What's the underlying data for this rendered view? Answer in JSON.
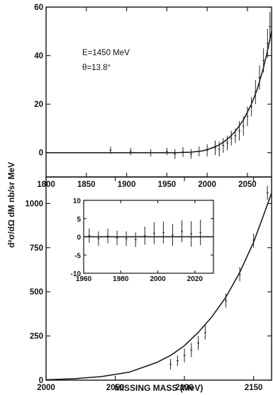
{
  "chart_data": [
    {
      "type": "scatter",
      "panel": "top",
      "annotations": [
        "E=1450 MeV",
        "θ=13.8°"
      ],
      "xlabel": "",
      "ylabel": "d²σ/dΩ dM  nb/sr MeV",
      "xlim": [
        1800,
        2080
      ],
      "ylim": [
        -10,
        60
      ],
      "x_ticks": [
        1800,
        1850,
        1900,
        1950,
        2000,
        2050
      ],
      "y_ticks": [
        0,
        20,
        40,
        60
      ],
      "grid": false,
      "series": [
        {
          "kind": "data_points_with_error_bars",
          "points": [
            {
              "x": 1880,
              "y": 1,
              "err": 1.5
            },
            {
              "x": 1905,
              "y": 0.5,
              "err": 1.5
            },
            {
              "x": 1930,
              "y": 0,
              "err": 1.5
            },
            {
              "x": 1950,
              "y": 0.5,
              "err": 1.5
            },
            {
              "x": 1960,
              "y": -0.5,
              "err": 2
            },
            {
              "x": 1970,
              "y": 0.3,
              "err": 2
            },
            {
              "x": 1980,
              "y": -0.5,
              "err": 2
            },
            {
              "x": 1990,
              "y": 0.5,
              "err": 2
            },
            {
              "x": 2000,
              "y": 1,
              "err": 2.5
            },
            {
              "x": 2010,
              "y": 2,
              "err": 3
            },
            {
              "x": 2015,
              "y": 1.5,
              "err": 3
            },
            {
              "x": 2020,
              "y": 3,
              "err": 3
            },
            {
              "x": 2025,
              "y": 4,
              "err": 3
            },
            {
              "x": 2030,
              "y": 6,
              "err": 3
            },
            {
              "x": 2035,
              "y": 7,
              "err": 3
            },
            {
              "x": 2040,
              "y": 9,
              "err": 4
            },
            {
              "x": 2045,
              "y": 11,
              "err": 4
            },
            {
              "x": 2050,
              "y": 15,
              "err": 4
            },
            {
              "x": 2055,
              "y": 19,
              "err": 4
            },
            {
              "x": 2060,
              "y": 25,
              "err": 5
            },
            {
              "x": 2065,
              "y": 31,
              "err": 5
            },
            {
              "x": 2070,
              "y": 38,
              "err": 5
            },
            {
              "x": 2075,
              "y": 45,
              "err": 6
            },
            {
              "x": 2078,
              "y": 52,
              "err": 6
            }
          ]
        },
        {
          "kind": "fit_curve",
          "points": [
            {
              "x": 1800,
              "y": 0
            },
            {
              "x": 1960,
              "y": 0
            },
            {
              "x": 1980,
              "y": 0.2
            },
            {
              "x": 1995,
              "y": 0.8
            },
            {
              "x": 2005,
              "y": 1.8
            },
            {
              "x": 2015,
              "y": 3.2
            },
            {
              "x": 2025,
              "y": 5.5
            },
            {
              "x": 2035,
              "y": 8.8
            },
            {
              "x": 2045,
              "y": 13.5
            },
            {
              "x": 2055,
              "y": 20
            },
            {
              "x": 2062,
              "y": 26
            },
            {
              "x": 2070,
              "y": 35
            },
            {
              "x": 2075,
              "y": 42
            },
            {
              "x": 2080,
              "y": 50
            }
          ]
        }
      ]
    },
    {
      "type": "scatter",
      "panel": "bottom",
      "xlabel": "MISSING MASS (MeV)",
      "ylabel": "",
      "xlim": [
        2000,
        2163
      ],
      "ylim": [
        0,
        1150
      ],
      "x_ticks": [
        2000,
        2050,
        2100,
        2150
      ],
      "y_ticks": [
        0,
        250,
        500,
        750,
        1000
      ],
      "grid": false,
      "series": [
        {
          "kind": "data_points_with_error_bars",
          "points": [
            {
              "x": 2090,
              "y": 90,
              "err": 30
            },
            {
              "x": 2095,
              "y": 110,
              "err": 30
            },
            {
              "x": 2100,
              "y": 140,
              "err": 40
            },
            {
              "x": 2105,
              "y": 170,
              "err": 40
            },
            {
              "x": 2110,
              "y": 210,
              "err": 40
            },
            {
              "x": 2115,
              "y": 270,
              "err": 40
            },
            {
              "x": 2130,
              "y": 450,
              "err": 40
            },
            {
              "x": 2140,
              "y": 600,
              "err": 40
            },
            {
              "x": 2150,
              "y": 790,
              "err": 40
            },
            {
              "x": 2160,
              "y": 1060,
              "err": 40
            }
          ]
        },
        {
          "kind": "fit_curve",
          "points": [
            {
              "x": 2000,
              "y": 2
            },
            {
              "x": 2020,
              "y": 8
            },
            {
              "x": 2040,
              "y": 20
            },
            {
              "x": 2060,
              "y": 45
            },
            {
              "x": 2080,
              "y": 100
            },
            {
              "x": 2090,
              "y": 140
            },
            {
              "x": 2100,
              "y": 195
            },
            {
              "x": 2110,
              "y": 270
            },
            {
              "x": 2120,
              "y": 360
            },
            {
              "x": 2130,
              "y": 470
            },
            {
              "x": 2140,
              "y": 610
            },
            {
              "x": 2150,
              "y": 780
            },
            {
              "x": 2158,
              "y": 950
            },
            {
              "x": 2163,
              "y": 1060
            }
          ]
        }
      ]
    },
    {
      "type": "scatter",
      "panel": "inset",
      "xlim": [
        1960,
        2030
      ],
      "ylim": [
        -10,
        10
      ],
      "x_ticks": [
        1960,
        1980,
        2000,
        2020
      ],
      "y_ticks": [
        -10,
        -5,
        0,
        5,
        10
      ],
      "series": [
        {
          "kind": "residuals_with_error_bars",
          "points": [
            {
              "x": 1963,
              "y": 0.3,
              "err": 2
            },
            {
              "x": 1968,
              "y": -0.5,
              "err": 2
            },
            {
              "x": 1973,
              "y": 0.2,
              "err": 2
            },
            {
              "x": 1978,
              "y": -0.3,
              "err": 2
            },
            {
              "x": 1983,
              "y": -0.5,
              "err": 2
            },
            {
              "x": 1988,
              "y": -0.8,
              "err": 2
            },
            {
              "x": 1993,
              "y": 0.3,
              "err": 2.5
            },
            {
              "x": 1998,
              "y": 1,
              "err": 3
            },
            {
              "x": 2003,
              "y": 1.2,
              "err": 3
            },
            {
              "x": 2008,
              "y": 0.5,
              "err": 3
            },
            {
              "x": 2013,
              "y": 1.5,
              "err": 3
            },
            {
              "x": 2018,
              "y": 0.8,
              "err": 3.5
            },
            {
              "x": 2023,
              "y": 1.2,
              "err": 3.5
            }
          ]
        }
      ]
    }
  ]
}
